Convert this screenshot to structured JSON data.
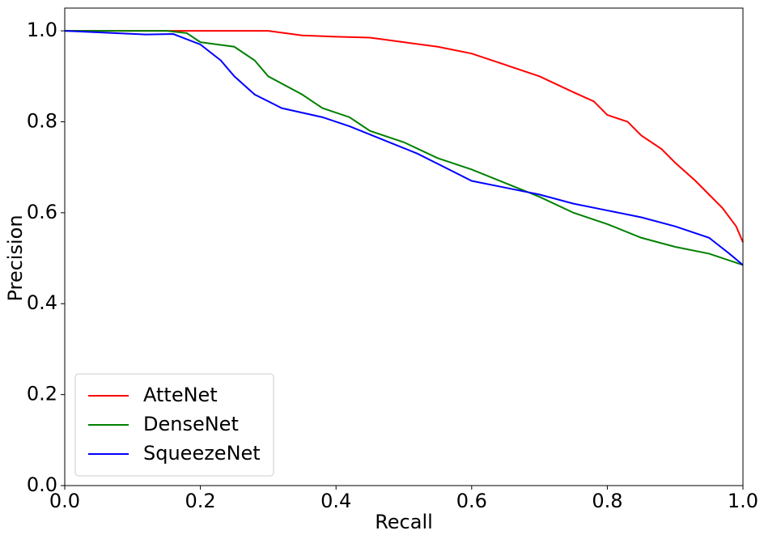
{
  "chart_data": {
    "type": "line",
    "x_label": "Recall",
    "y_label": "Precision",
    "xlim": [
      0,
      1
    ],
    "ylim": [
      0,
      1.05
    ],
    "xticks": [
      {
        "value": 0,
        "label": "0.0"
      },
      0.2,
      0.4,
      0.6,
      0.8,
      {
        "value": 1,
        "label": "1.0"
      }
    ],
    "yticks": [
      {
        "value": 0,
        "label": "0.0"
      },
      0.2,
      0.4,
      0.6,
      0.8,
      {
        "value": 1,
        "label": "1.0"
      }
    ],
    "legend": "lower left",
    "series": [
      {
        "name": "AtteNet",
        "color": "#ff0000",
        "x": [
          0,
          0.15,
          0.3,
          0.35,
          0.4,
          0.45,
          0.5,
          0.55,
          0.6,
          0.65,
          0.7,
          0.75,
          0.78,
          0.8,
          0.83,
          0.85,
          0.88,
          0.9,
          0.93,
          0.95,
          0.97,
          0.99,
          1.0
        ],
        "values": [
          1.0,
          1.0,
          1.0,
          0.99,
          0.987,
          0.985,
          0.975,
          0.965,
          0.95,
          0.925,
          0.9,
          0.865,
          0.845,
          0.815,
          0.8,
          0.77,
          0.74,
          0.71,
          0.67,
          0.64,
          0.61,
          0.57,
          0.535
        ]
      },
      {
        "name": "DenseNet",
        "color": "#008000",
        "x": [
          0,
          0.15,
          0.18,
          0.2,
          0.25,
          0.28,
          0.3,
          0.35,
          0.38,
          0.42,
          0.45,
          0.5,
          0.55,
          0.6,
          0.65,
          0.7,
          0.75,
          0.8,
          0.85,
          0.9,
          0.95,
          1.0
        ],
        "values": [
          1.0,
          1.0,
          0.995,
          0.975,
          0.965,
          0.935,
          0.9,
          0.86,
          0.83,
          0.81,
          0.78,
          0.755,
          0.72,
          0.695,
          0.665,
          0.635,
          0.6,
          0.575,
          0.545,
          0.525,
          0.51,
          0.485
        ]
      },
      {
        "name": "SqueezeNet",
        "color": "#0000ff",
        "x": [
          0,
          0.12,
          0.16,
          0.2,
          0.23,
          0.25,
          0.28,
          0.32,
          0.38,
          0.42,
          0.47,
          0.52,
          0.56,
          0.6,
          0.65,
          0.7,
          0.75,
          0.8,
          0.85,
          0.9,
          0.95,
          0.98,
          1.0
        ],
        "values": [
          1.0,
          0.992,
          0.993,
          0.97,
          0.935,
          0.9,
          0.86,
          0.83,
          0.81,
          0.79,
          0.76,
          0.73,
          0.7,
          0.67,
          0.655,
          0.64,
          0.62,
          0.605,
          0.59,
          0.57,
          0.545,
          0.51,
          0.485
        ]
      }
    ]
  }
}
